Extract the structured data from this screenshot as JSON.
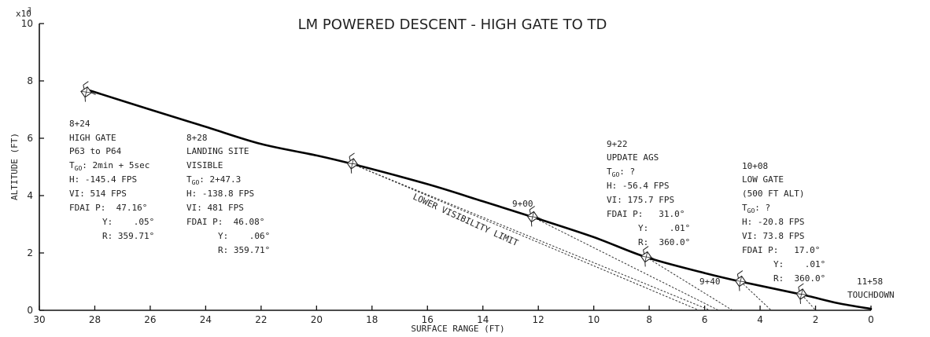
{
  "chart_data": {
    "type": "line",
    "title": "LM POWERED DESCENT - HIGH GATE TO TD",
    "xlabel": "SURFACE RANGE (FT)",
    "ylabel": "ALTITUDE (FT)",
    "y_multiplier": "x10",
    "y_multiplier_exp": "3",
    "xlim": [
      30,
      0
    ],
    "ylim": [
      0,
      10
    ],
    "x_ticks": [
      30,
      28,
      26,
      24,
      22,
      20,
      18,
      16,
      14,
      12,
      10,
      8,
      6,
      4,
      2,
      0
    ],
    "y_ticks": [
      0,
      2,
      4,
      6,
      8,
      10
    ],
    "trajectory": {
      "x": [
        28.3,
        26.0,
        24.0,
        22.0,
        20.0,
        18.7,
        16.0,
        14.0,
        12.2,
        10.0,
        8.1,
        6.0,
        4.7,
        2.5,
        1.2,
        0.0
      ],
      "y": [
        7.7,
        7.0,
        6.4,
        5.8,
        5.4,
        5.1,
        4.4,
        3.8,
        3.25,
        2.55,
        1.85,
        1.3,
        1.0,
        0.55,
        0.25,
        0.05
      ]
    },
    "visibility_label": "LOWER VISIBILITY LIMIT",
    "visibility_lines": [
      {
        "from": [
          18.7,
          5.1
        ],
        "to": [
          6.2,
          0.0
        ]
      },
      {
        "from": [
          18.7,
          5.1
        ],
        "to": [
          5.8,
          0.0
        ]
      },
      {
        "from": [
          12.2,
          3.25
        ],
        "to": [
          5.5,
          0.0
        ]
      },
      {
        "from": [
          8.1,
          1.85
        ],
        "to": [
          5.0,
          0.0
        ]
      },
      {
        "from": [
          4.7,
          1.0
        ],
        "to": [
          3.6,
          0.0
        ]
      },
      {
        "from": [
          2.5,
          0.55
        ],
        "to": [
          2.0,
          0.0
        ]
      }
    ],
    "markers": [
      {
        "x": 28.3,
        "y": 7.6
      },
      {
        "x": 18.7,
        "y": 5.1
      },
      {
        "x": 12.2,
        "y": 3.25
      },
      {
        "x": 8.1,
        "y": 1.85
      },
      {
        "x": 4.7,
        "y": 1.0
      },
      {
        "x": 2.5,
        "y": 0.55
      }
    ],
    "annotations": {
      "high_gate": {
        "time": "8+24",
        "label1": "HIGH GATE",
        "label2": "P63 to P64",
        "tgo": ": 2min + 5sec",
        "h": "H: -145.4 FPS",
        "vi": "VI: 514 FPS",
        "fdai_p": "FDAI P:  47.16°",
        "fdai_y": "Y:    .05°",
        "fdai_r": "R: 359.71°"
      },
      "landing_site": {
        "time": "8+28",
        "label1": "LANDING SITE",
        "label2": "VISIBLE",
        "tgo": ": 2+47.3",
        "h": "H: -138.8 FPS",
        "vi": "VI: 481 FPS",
        "fdai_p": "FDAI P:  46.08°",
        "fdai_y": "Y:    .06°",
        "fdai_r": "R: 359.71°"
      },
      "nine_zero": {
        "time": "9+00"
      },
      "update_ags": {
        "time": "9+22",
        "label1": "UPDATE AGS",
        "tgo": ": ?",
        "h": "H: -56.4 FPS",
        "vi": "VI: 175.7 FPS",
        "fdai_p": "FDAI P:   31.0°",
        "fdai_y": "Y:    .01°",
        "fdai_r": "R:  360.0°"
      },
      "nine_forty": {
        "time": "9+40"
      },
      "low_gate": {
        "time": "10+08",
        "label1": "LOW GATE",
        "label2": "(500 FT ALT)",
        "tgo": ": ?",
        "h": "H: -20.8 FPS",
        "vi": "VI: 73.8 FPS",
        "fdai_p": "FDAI P:   17.0°",
        "fdai_y": "Y:    .01°",
        "fdai_r": "R:  360.0°"
      },
      "touchdown": {
        "time": "11+58",
        "label1": "TOUCHDOWN"
      }
    },
    "tgo_prefix": "T",
    "tgo_sub": "GO",
    "grid": false,
    "legend": "none"
  }
}
